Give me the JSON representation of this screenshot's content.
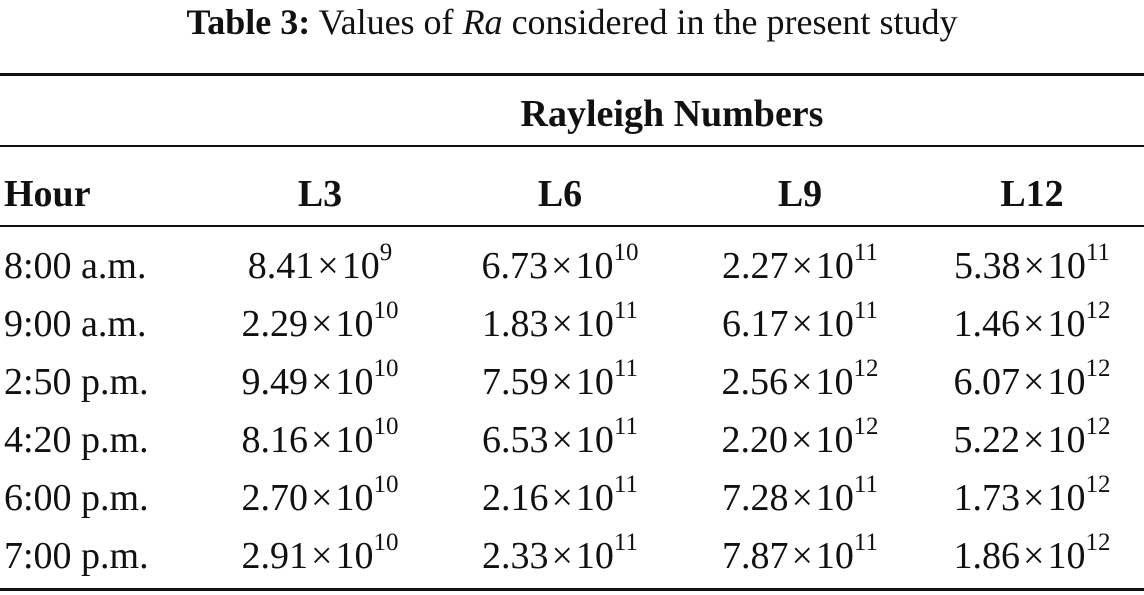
{
  "caption": {
    "label": "Table 3:",
    "text_before": " Values of ",
    "variable": "Ra",
    "text_after": " considered in the present study"
  },
  "table": {
    "group_header": "Rayleigh Numbers",
    "columns": [
      "Hour",
      "L3",
      "L6",
      "L9",
      "L12"
    ],
    "times_symbol": "×",
    "rows": [
      {
        "hour": "8:00 a.m.",
        "values": [
          {
            "mantissa": "8.41",
            "base": "10",
            "exp": "9"
          },
          {
            "mantissa": "6.73",
            "base": "10",
            "exp": "10"
          },
          {
            "mantissa": "2.27",
            "base": "10",
            "exp": "11"
          },
          {
            "mantissa": "5.38",
            "base": "10",
            "exp": "11"
          }
        ]
      },
      {
        "hour": "9:00 a.m.",
        "values": [
          {
            "mantissa": "2.29",
            "base": "10",
            "exp": "10"
          },
          {
            "mantissa": "1.83",
            "base": "10",
            "exp": "11"
          },
          {
            "mantissa": "6.17",
            "base": "10",
            "exp": "11"
          },
          {
            "mantissa": "1.46",
            "base": "10",
            "exp": "12"
          }
        ]
      },
      {
        "hour": "2:50 p.m.",
        "values": [
          {
            "mantissa": "9.49",
            "base": "10",
            "exp": "10"
          },
          {
            "mantissa": "7.59",
            "base": "10",
            "exp": "11"
          },
          {
            "mantissa": "2.56",
            "base": "10",
            "exp": "12"
          },
          {
            "mantissa": "6.07",
            "base": "10",
            "exp": "12"
          }
        ]
      },
      {
        "hour": "4:20 p.m.",
        "values": [
          {
            "mantissa": "8.16",
            "base": "10",
            "exp": "10"
          },
          {
            "mantissa": "6.53",
            "base": "10",
            "exp": "11"
          },
          {
            "mantissa": "2.20",
            "base": "10",
            "exp": "12"
          },
          {
            "mantissa": "5.22",
            "base": "10",
            "exp": "12"
          }
        ]
      },
      {
        "hour": "6:00 p.m.",
        "values": [
          {
            "mantissa": "2.70",
            "base": "10",
            "exp": "10"
          },
          {
            "mantissa": "2.16",
            "base": "10",
            "exp": "11"
          },
          {
            "mantissa": "7.28",
            "base": "10",
            "exp": "11"
          },
          {
            "mantissa": "1.73",
            "base": "10",
            "exp": "12"
          }
        ]
      },
      {
        "hour": "7:00 p.m.",
        "values": [
          {
            "mantissa": "2.91",
            "base": "10",
            "exp": "10"
          },
          {
            "mantissa": "2.33",
            "base": "10",
            "exp": "11"
          },
          {
            "mantissa": "7.87",
            "base": "10",
            "exp": "11"
          },
          {
            "mantissa": "1.86",
            "base": "10",
            "exp": "12"
          }
        ]
      }
    ]
  }
}
